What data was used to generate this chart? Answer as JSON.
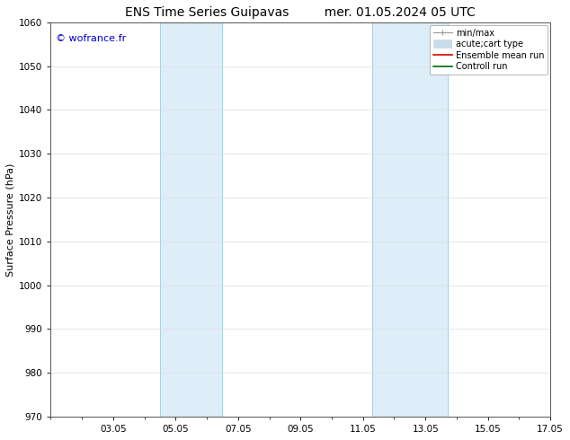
{
  "title_left": "ENS Time Series Guipavas",
  "title_right": "mer. 01.05.2024 05 UTC",
  "ylabel": "Surface Pressure (hPa)",
  "ylim": [
    970,
    1060
  ],
  "yticks": [
    970,
    980,
    990,
    1000,
    1010,
    1020,
    1030,
    1040,
    1050,
    1060
  ],
  "xlim": [
    0,
    16
  ],
  "xtick_labels": [
    "03.05",
    "05.05",
    "07.05",
    "09.05",
    "11.05",
    "13.05",
    "15.05",
    "17.05"
  ],
  "xtick_positions": [
    2,
    4,
    6,
    8,
    10,
    12,
    14,
    16
  ],
  "shade_bands": [
    {
      "xmin": 3.5,
      "xmax": 5.5
    },
    {
      "xmin": 10.3,
      "xmax": 12.7
    }
  ],
  "shade_color": "#ddeef8",
  "shade_edge_color": "#aaccdd",
  "background_color": "#ffffff",
  "plot_bg_color": "#ffffff",
  "copyright_text": "© wofrance.fr",
  "copyright_color": "#0000cc",
  "font_family": "DejaVu Sans",
  "title_fontsize": 10,
  "axis_fontsize": 8,
  "tick_fontsize": 7.5,
  "legend_fontsize": 7
}
